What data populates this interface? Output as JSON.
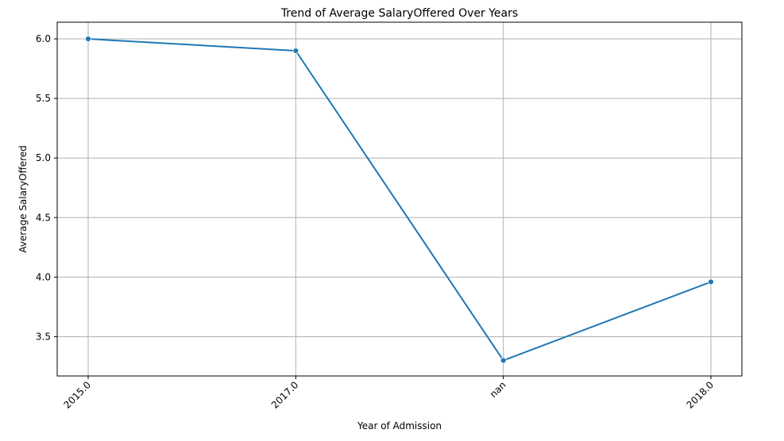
{
  "chart_data": {
    "type": "line",
    "title": "Trend of Average SalaryOffered Over Years",
    "xlabel": "Year of Admission",
    "ylabel": "Average SalaryOffered",
    "categories": [
      "2015.0",
      "2017.0",
      "nan",
      "2018.0"
    ],
    "series": [
      {
        "values": [
          6.0,
          5.9,
          3.3,
          3.96
        ],
        "color": "#1f77b4",
        "marker": "circle"
      }
    ],
    "ylim": [
      3.17,
      6.14
    ],
    "yticks": [
      3.5,
      4.0,
      4.5,
      5.0,
      5.5,
      6.0
    ],
    "ytick_labels": [
      "3.5",
      "4.0",
      "4.5",
      "5.0",
      "5.5",
      "6.0"
    ],
    "grid": true,
    "xtick_rotation_deg": 45
  }
}
